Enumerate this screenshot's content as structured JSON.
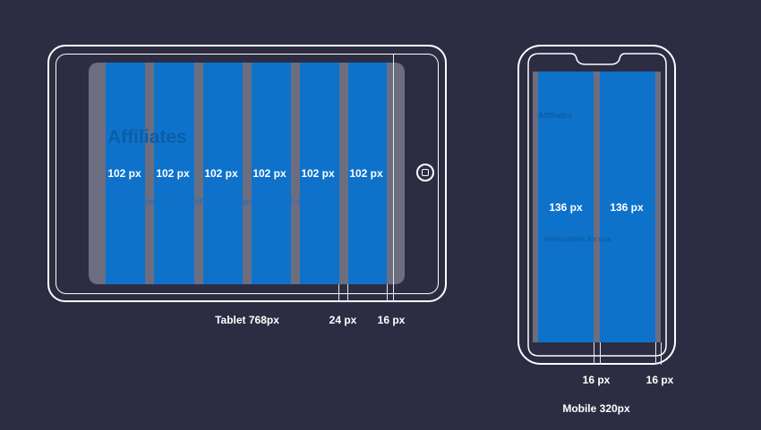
{
  "tablet": {
    "page_title": "Affiliates",
    "link_text": "https://studygy.com/Referal/29acae31-b352-4228",
    "column_labels": [
      "102 px",
      "102 px",
      "102 px",
      "102 px",
      "102 px",
      "102 px"
    ],
    "caption": "Tablet 768px",
    "gutter_label": "24 px",
    "margin_label": "16 px"
  },
  "mobile": {
    "page_title": "Affiliates",
    "section_title": "Instructions for use",
    "column_labels": [
      "136 px",
      "136 px"
    ],
    "gutter_label": "16 px",
    "margin_label": "16 px",
    "caption": "Mobile 320px"
  },
  "colors": {
    "background": "#2c2c42",
    "column": "#0a73cf",
    "gutter": "#6d6d80",
    "outline": "#ffffff"
  }
}
